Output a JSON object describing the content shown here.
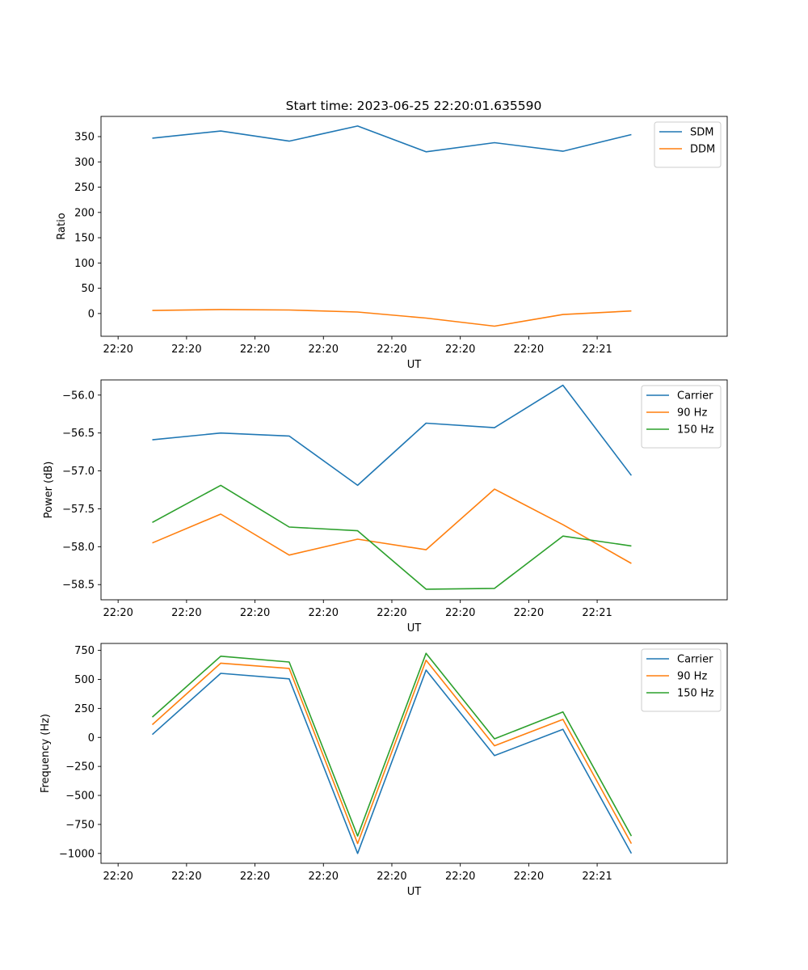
{
  "figure": {
    "title": "Start time: 2023-06-25 22:20:01.635590"
  },
  "colors": {
    "blue": "#1f77b4",
    "orange": "#ff7f0e",
    "green": "#2ca02c"
  },
  "chart_data": [
    {
      "type": "line",
      "xlabel": "UT",
      "ylabel": "Ratio",
      "x_tick_labels": [
        "22:20",
        "22:20",
        "22:20",
        "22:20",
        "22:20",
        "22:20",
        "22:20",
        "22:21"
      ],
      "xlim": [
        -0.25,
        8.9
      ],
      "ylim": [
        -45,
        390
      ],
      "yticks": [
        0,
        50,
        100,
        150,
        200,
        250,
        300,
        350
      ],
      "ytick_labels": [
        "0",
        "50",
        "100",
        "150",
        "200",
        "250",
        "300",
        "350"
      ],
      "x": [
        0.5,
        1.5,
        2.5,
        3.5,
        4.5,
        5.5,
        6.5,
        7.5
      ],
      "legend_position": "top-right",
      "series": [
        {
          "name": "SDM",
          "color": "#1f77b4",
          "values": [
            347,
            361,
            341,
            371,
            320,
            338,
            321,
            354
          ]
        },
        {
          "name": "DDM",
          "color": "#ff7f0e",
          "values": [
            6,
            8,
            7,
            3,
            -9,
            -25,
            -2,
            5
          ]
        }
      ]
    },
    {
      "type": "line",
      "xlabel": "UT",
      "ylabel": "Power (dB)",
      "x_tick_labels": [
        "22:20",
        "22:20",
        "22:20",
        "22:20",
        "22:20",
        "22:20",
        "22:20",
        "22:21"
      ],
      "xlim": [
        -0.25,
        8.9
      ],
      "ylim": [
        -58.7,
        -55.8
      ],
      "yticks": [
        -58.5,
        -58.0,
        -57.5,
        -57.0,
        -56.5,
        -56.0
      ],
      "ytick_labels": [
        "−58.5",
        "−58.0",
        "−57.5",
        "−57.0",
        "−56.5",
        "−56.0"
      ],
      "x": [
        0.5,
        1.5,
        2.5,
        3.5,
        4.5,
        5.5,
        6.5,
        7.5
      ],
      "legend_position": "top-right",
      "series": [
        {
          "name": "Carrier",
          "color": "#1f77b4",
          "values": [
            -56.59,
            -56.5,
            -56.54,
            -57.19,
            -56.37,
            -56.43,
            -55.87,
            -57.06
          ]
        },
        {
          "name": "90 Hz",
          "color": "#ff7f0e",
          "values": [
            -57.95,
            -57.57,
            -58.11,
            -57.9,
            -58.04,
            -57.24,
            -57.71,
            -58.22
          ]
        },
        {
          "name": "150 Hz",
          "color": "#2ca02c",
          "values": [
            -57.68,
            -57.19,
            -57.74,
            -57.79,
            -58.56,
            -58.55,
            -57.86,
            -57.99
          ]
        }
      ]
    },
    {
      "type": "line",
      "xlabel": "UT",
      "ylabel": "Frequency (Hz)",
      "x_tick_labels": [
        "22:20",
        "22:20",
        "22:20",
        "22:20",
        "22:20",
        "22:20",
        "22:20",
        "22:21"
      ],
      "xlim": [
        -0.25,
        8.9
      ],
      "ylim": [
        -1085,
        810
      ],
      "yticks": [
        -1000,
        -750,
        -500,
        -250,
        0,
        250,
        500,
        750
      ],
      "ytick_labels": [
        "−1000",
        "−750",
        "−500",
        "−250",
        "0",
        "250",
        "500",
        "750"
      ],
      "x": [
        0.5,
        1.5,
        2.5,
        3.5,
        4.5,
        5.5,
        6.5,
        7.5
      ],
      "legend_position": "top-right",
      "series": [
        {
          "name": "Carrier",
          "color": "#1f77b4",
          "values": [
            25,
            552,
            505,
            -1000,
            580,
            -157,
            70,
            -1000
          ]
        },
        {
          "name": "90 Hz",
          "color": "#ff7f0e",
          "values": [
            110,
            640,
            595,
            -915,
            665,
            -72,
            155,
            -915
          ]
        },
        {
          "name": "150 Hz",
          "color": "#2ca02c",
          "values": [
            175,
            700,
            650,
            -850,
            725,
            -12,
            220,
            -850
          ]
        }
      ]
    }
  ]
}
